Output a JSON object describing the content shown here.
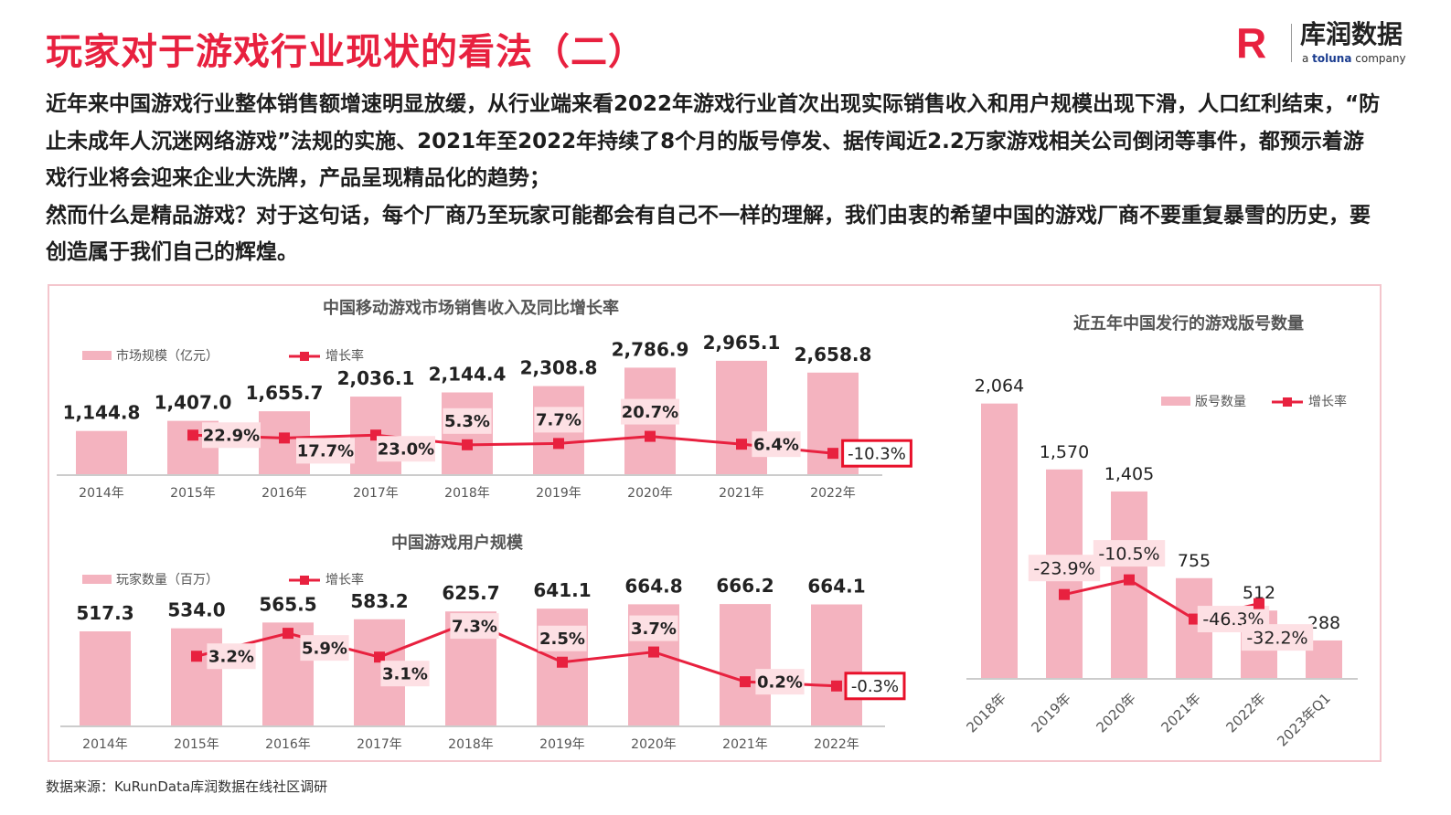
{
  "title": "玩家对于游戏行业现状的看法（二）",
  "logo": {
    "name_cn": "库润数据",
    "tagline_a": "a ",
    "tagline_brand": "toluna",
    "tagline_b": " company",
    "mark": "R"
  },
  "paragraph": [
    "近年来中国游戏行业整体销售额增速明显放缓，从行业端来看2022年游戏行业首次出现实际销售收入和用户规模出现下滑，人口红利结束，“防止未成年人沉迷网络游戏”法规的实施、2021年至2022年持续了8个月的版号停发、据传闻近2.2万家游戏相关公司倒闭等事件，都预示着游戏行业将会迎来企业大洗牌，产品呈现精品化的趋势；",
    "然而什么是精品游戏？对于这句话，每个厂商乃至玩家可能都会有自己不一样的理解，我们由衷的希望中国的游戏厂商不要重复暴雪的历史，要创造属于我们自己的辉煌。"
  ],
  "source": "数据来源：KuRunData库润数据在线社区调研",
  "colors": {
    "accent": "#e8213f",
    "bar": "#f4b3bf",
    "label_bg": "#fde0e4",
    "highlight_border": "#e8102a"
  },
  "chart_data": [
    {
      "type": "bar+line",
      "title": "中国移动游戏市场销售收入及同比增长率",
      "categories": [
        "2014年",
        "2015年",
        "2016年",
        "2017年",
        "2018年",
        "2019年",
        "2020年",
        "2021年",
        "2022年"
      ],
      "series": [
        {
          "name": "市场规模（亿元）",
          "type": "bar",
          "values": [
            1144.8,
            1407.0,
            1655.7,
            2036.1,
            2144.4,
            2308.8,
            2786.9,
            2965.1,
            2658.8
          ],
          "labels": [
            "1,144.8",
            "1,407.0",
            "1,655.7",
            "2,036.1",
            "2,144.4",
            "2,308.8",
            "2,786.9",
            "2,965.1",
            "2,658.8"
          ]
        },
        {
          "name": "增长率",
          "type": "line",
          "values": [
            null,
            22.9,
            17.7,
            23.0,
            5.3,
            7.7,
            20.7,
            6.4,
            -10.3
          ],
          "labels": [
            null,
            "22.9%",
            "17.7%",
            "23.0%",
            "5.3%",
            "7.7%",
            "20.7%",
            "6.4%",
            "-10.3%"
          ]
        }
      ],
      "highlight": "-10.3%",
      "legend": "top-left"
    },
    {
      "type": "bar+line",
      "title": "中国游戏用户规模",
      "categories": [
        "2014年",
        "2015年",
        "2016年",
        "2017年",
        "2018年",
        "2019年",
        "2020年",
        "2021年",
        "2022年"
      ],
      "series": [
        {
          "name": "玩家数量（百万）",
          "type": "bar",
          "values": [
            517.3,
            534.0,
            565.5,
            583.2,
            625.7,
            641.1,
            664.8,
            666.2,
            664.1
          ],
          "labels": [
            "517.3",
            "534.0",
            "565.5",
            "583.2",
            "625.7",
            "641.1",
            "664.8",
            "666.2",
            "664.1"
          ]
        },
        {
          "name": "增长率",
          "type": "line",
          "values": [
            null,
            3.2,
            5.9,
            3.1,
            7.3,
            2.5,
            3.7,
            0.2,
            -0.3
          ],
          "labels": [
            null,
            "3.2%",
            "5.9%",
            "3.1%",
            "7.3%",
            "2.5%",
            "3.7%",
            "0.2%",
            "-0.3%"
          ]
        }
      ],
      "highlight": "-0.3%",
      "legend": "top-left"
    },
    {
      "type": "bar+line",
      "title": "近五年中国发行的游戏版号数量",
      "categories": [
        "2018年",
        "2019年",
        "2020年",
        "2021年",
        "2022年",
        "2023年Q1"
      ],
      "series": [
        {
          "name": "版号数量",
          "type": "bar",
          "values": [
            2064,
            1570,
            1405,
            755,
            512,
            288
          ],
          "labels": [
            "2,064",
            "1,570",
            "1,405",
            "755",
            "512",
            "288"
          ]
        },
        {
          "name": "增长率",
          "type": "line",
          "values": [
            null,
            -23.9,
            -10.5,
            -46.3,
            -32.2,
            null
          ],
          "labels": [
            null,
            "-23.9%",
            "-10.5%",
            "-46.3%",
            "-32.2%",
            null
          ]
        }
      ],
      "legend": "top-right"
    }
  ]
}
